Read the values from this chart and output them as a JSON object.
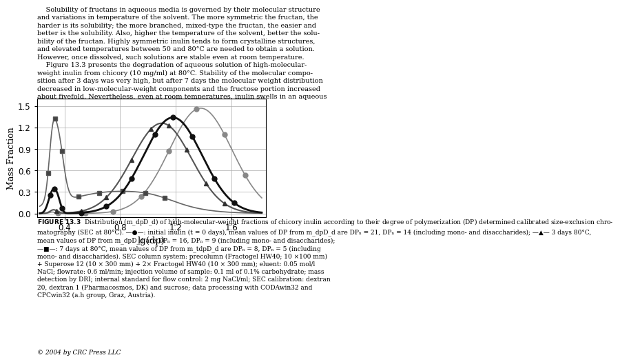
{
  "title_text": "Solubility of fructans in aqueous media is governed by their molecular structure\nand variations in temperature of the solvent. The more symmetric the fructan, the\nharder is its solubility; the more branched, mixed-type the fructan, the easier and\nbetter is the solubility. Also, higher the temperature of the solvent, better the solu-\nbility of the fructan. Highly symmetric inulin tends to form crystalline structures,\nand elevated temperatures between 50 and 80°C are needed to obtain a solution.\nHowever, once dissolved, such solutions are stable even at room temperature.\n    Figure 13.3 presents the degradation of aqueous solution of high-molecular-\nweight inulin from chicory (10 mg/ml) at 80°C. Stability of the molecular compo-\nsition after 3 days was very high, but after 7 days the molecular weight distribution\ndecreased in low-molecular-weight components and the fructose portion increased\nabout fivefold. Nevertheless, even at room temperatures, inulin swells in an aqueous",
  "xlabel": "lg(dp)",
  "ylabel": "Mass Fraction",
  "xlim": [
    0.2,
    1.85
  ],
  "ylim": [
    -0.05,
    1.6
  ],
  "xticks": [
    0.4,
    0.8,
    1.2,
    1.6
  ],
  "yticks": [
    0.0,
    0.3,
    0.6,
    0.9,
    1.2,
    1.5
  ],
  "caption": "FIGURE 13.3  Distribution (m_dpD_d) of high-molecular-weight fractions of chicory inulin according to their degree of polymerization (DP) determined calibrated size-exclusion chromatography (SEC at 80°C). —●—: initial inulin (t = 0 days), mean values of DP from m_dpD_d are DPw = 21, DPn = 14 (including mono- and disaccharides); —▲— 3 days 80°C, mean values of DP from m_dpD_d are DPw = 16, DPn = 9 (including mono- and disaccharides); —■—: 7 days at 80°C, mean values of DP from m_tdpD_d are DPw = 8, DPn = 5 (including mono- and disaccharides). SEC column system: precolumn (Fractogel HW40; 10 ×100 mm) + Superose 12 (10 × 300 mm) + 2× Fractogel HW40 (10 × 300 mm); eluent: 0.05 mol/l NaCl; flowrate: 0.6 ml/min; injection volume of sample: 0.1 ml of 0.1% carbohydrate; mass detection by DRI; internal standard for flow control: 2 mg NaCl/ml; SEC calibration: dextran 20, dextran 1 (Pharmacosmos, DK) and sucrose; data processing with CODAwin32 and CPCwin32 (a.h group, Graz, Austria).",
  "copyright": "© 2004 by CRC Press LLC",
  "line0_color": "#333333",
  "line1_color": "#777777",
  "line2_color": "#555555",
  "bg_color": "#ffffff"
}
